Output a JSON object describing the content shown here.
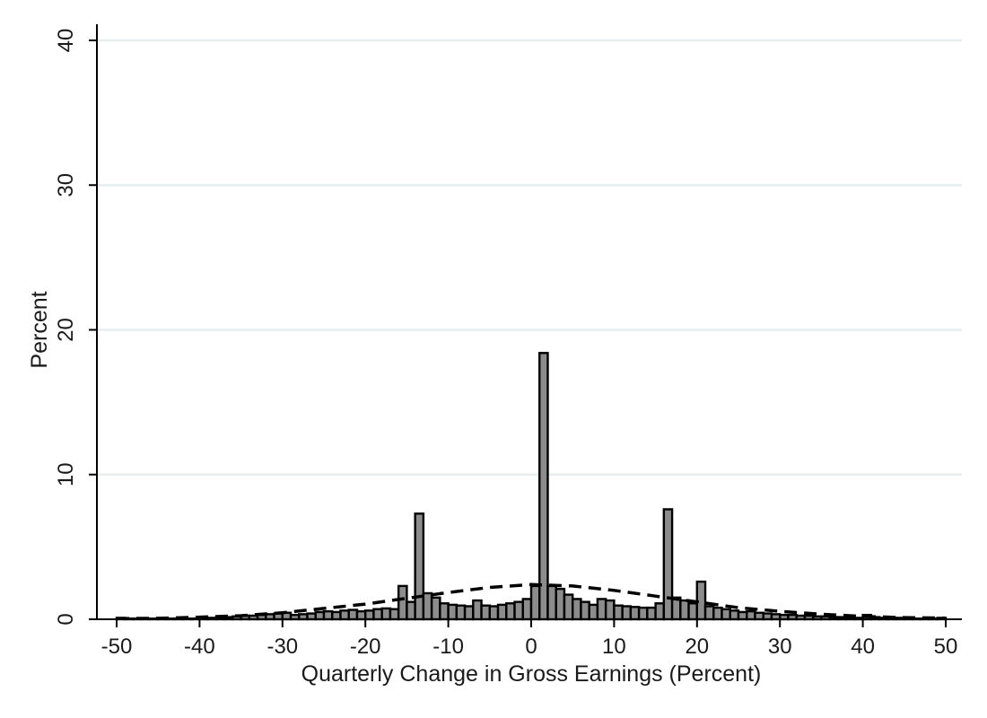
{
  "chart_data": {
    "type": "bar",
    "xlabel": "Quarterly Change in Gross Earnings (Percent)",
    "ylabel": "Percent",
    "xlim": [
      -50,
      50
    ],
    "ylim": [
      0,
      40
    ],
    "x_ticks": [
      -50,
      -40,
      -30,
      -20,
      -10,
      0,
      10,
      20,
      30,
      40,
      50
    ],
    "y_ticks": [
      0,
      10,
      20,
      30,
      40
    ],
    "grid": "horizontal",
    "bin_width": 1,
    "series": [
      {
        "type": "histogram",
        "x": [
          -50,
          -49,
          -48,
          -47,
          -46,
          -45,
          -44,
          -43,
          -42,
          -41,
          -40,
          -39,
          -38,
          -37,
          -36,
          -35,
          -34,
          -33,
          -32,
          -31,
          -30,
          -29,
          -28,
          -27,
          -26,
          -25,
          -24,
          -23,
          -22,
          -21,
          -20,
          -19,
          -18,
          -17,
          -16,
          -15,
          -14,
          -13,
          -12,
          -11,
          -10,
          -9,
          -8,
          -7,
          -6,
          -5,
          -4,
          -3,
          -2,
          -1,
          0,
          1,
          2,
          3,
          4,
          5,
          6,
          7,
          8,
          9,
          10,
          11,
          12,
          13,
          14,
          15,
          16,
          17,
          18,
          19,
          20,
          21,
          22,
          23,
          24,
          25,
          26,
          27,
          28,
          29,
          30,
          31,
          32,
          33,
          34,
          35,
          36,
          37,
          38,
          39,
          40,
          41,
          42,
          43,
          44,
          45,
          46,
          47,
          48,
          49
        ],
        "values": [
          0.1,
          0.05,
          0.05,
          0.05,
          0.05,
          0.05,
          0.05,
          0.05,
          0.05,
          0.05,
          0.1,
          0.1,
          0.15,
          0.15,
          0.2,
          0.25,
          0.25,
          0.3,
          0.35,
          0.4,
          0.45,
          0.3,
          0.35,
          0.4,
          0.5,
          0.55,
          0.5,
          0.6,
          0.65,
          0.55,
          0.6,
          0.7,
          0.75,
          0.7,
          2.3,
          1.2,
          7.3,
          1.8,
          1.5,
          1.1,
          1.0,
          0.95,
          0.9,
          1.3,
          0.95,
          0.9,
          1.0,
          1.1,
          1.2,
          1.4,
          2.3,
          18.4,
          2.3,
          2.1,
          1.7,
          1.4,
          1.2,
          1.0,
          1.4,
          1.3,
          0.95,
          0.9,
          0.85,
          0.8,
          0.8,
          1.1,
          7.6,
          1.5,
          1.3,
          1.1,
          2.6,
          0.9,
          0.8,
          0.7,
          0.6,
          0.5,
          0.55,
          0.45,
          0.4,
          0.35,
          0.3,
          0.3,
          0.25,
          0.25,
          0.2,
          0.2,
          0.15,
          0.15,
          0.15,
          0.1,
          0.3,
          0.15,
          0.1,
          0.1,
          0.1,
          0.1,
          0.05,
          0.05,
          0.05,
          0.1
        ]
      },
      {
        "type": "density",
        "style": "dashed",
        "x": [
          -50,
          -45,
          -40,
          -35,
          -30,
          -25,
          -20,
          -15,
          -10,
          -5,
          0,
          5,
          10,
          15,
          20,
          25,
          30,
          35,
          40,
          45,
          50
        ],
        "values": [
          0.05,
          0.07,
          0.15,
          0.25,
          0.45,
          0.75,
          1.05,
          1.45,
          1.85,
          2.2,
          2.4,
          2.3,
          2.0,
          1.6,
          1.2,
          0.8,
          0.55,
          0.35,
          0.2,
          0.12,
          0.08
        ]
      }
    ]
  }
}
